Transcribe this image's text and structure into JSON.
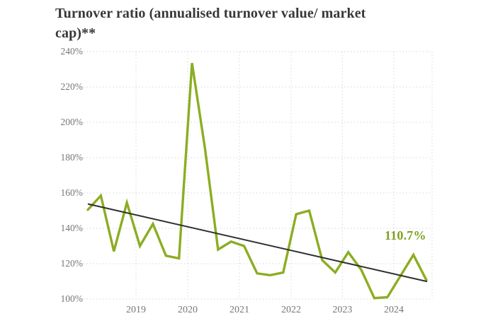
{
  "chart_data": {
    "type": "line",
    "title": "Turnover ratio (annualised turnover value/ market cap)**",
    "xlabel": "",
    "ylabel": "",
    "ylim": [
      100,
      240
    ],
    "grid": "dotted",
    "y_ticks": [
      240,
      220,
      200,
      180,
      160,
      140,
      120,
      100
    ],
    "y_tick_labels": [
      "240%",
      "220%",
      "200%",
      "180%",
      "160%",
      "140%",
      "120%",
      "100%"
    ],
    "x_tick_labels": [
      "2019",
      "2020",
      "2021",
      "2022",
      "2023",
      "2024"
    ],
    "x_tick_positions": [
      3.7,
      7.67,
      11.64,
      15.61,
      19.55,
      23.5
    ],
    "series": [
      {
        "name": "turnover-ratio",
        "color": "#8CAD22",
        "frequency": "quarterly",
        "values": [
          150.5,
          158.5,
          127,
          154.5,
          130,
          142.5,
          124.5,
          123,
          233.5,
          185,
          128,
          132.5,
          130,
          114.5,
          113.5,
          115,
          148,
          150,
          122,
          115,
          126.5,
          116.5,
          100.5,
          101,
          113,
          125,
          110.7
        ]
      },
      {
        "name": "trend-line",
        "color": "#303030",
        "type": "straight",
        "start_value": 153.8,
        "end_value": 109.9
      }
    ],
    "annotation": {
      "label": "110.7%",
      "color": "#7FA01E"
    },
    "colors": {
      "gridline": "#D6D6D6",
      "tick_text": "#767676",
      "title_text": "#383838",
      "background": "#FFFFFF"
    }
  }
}
